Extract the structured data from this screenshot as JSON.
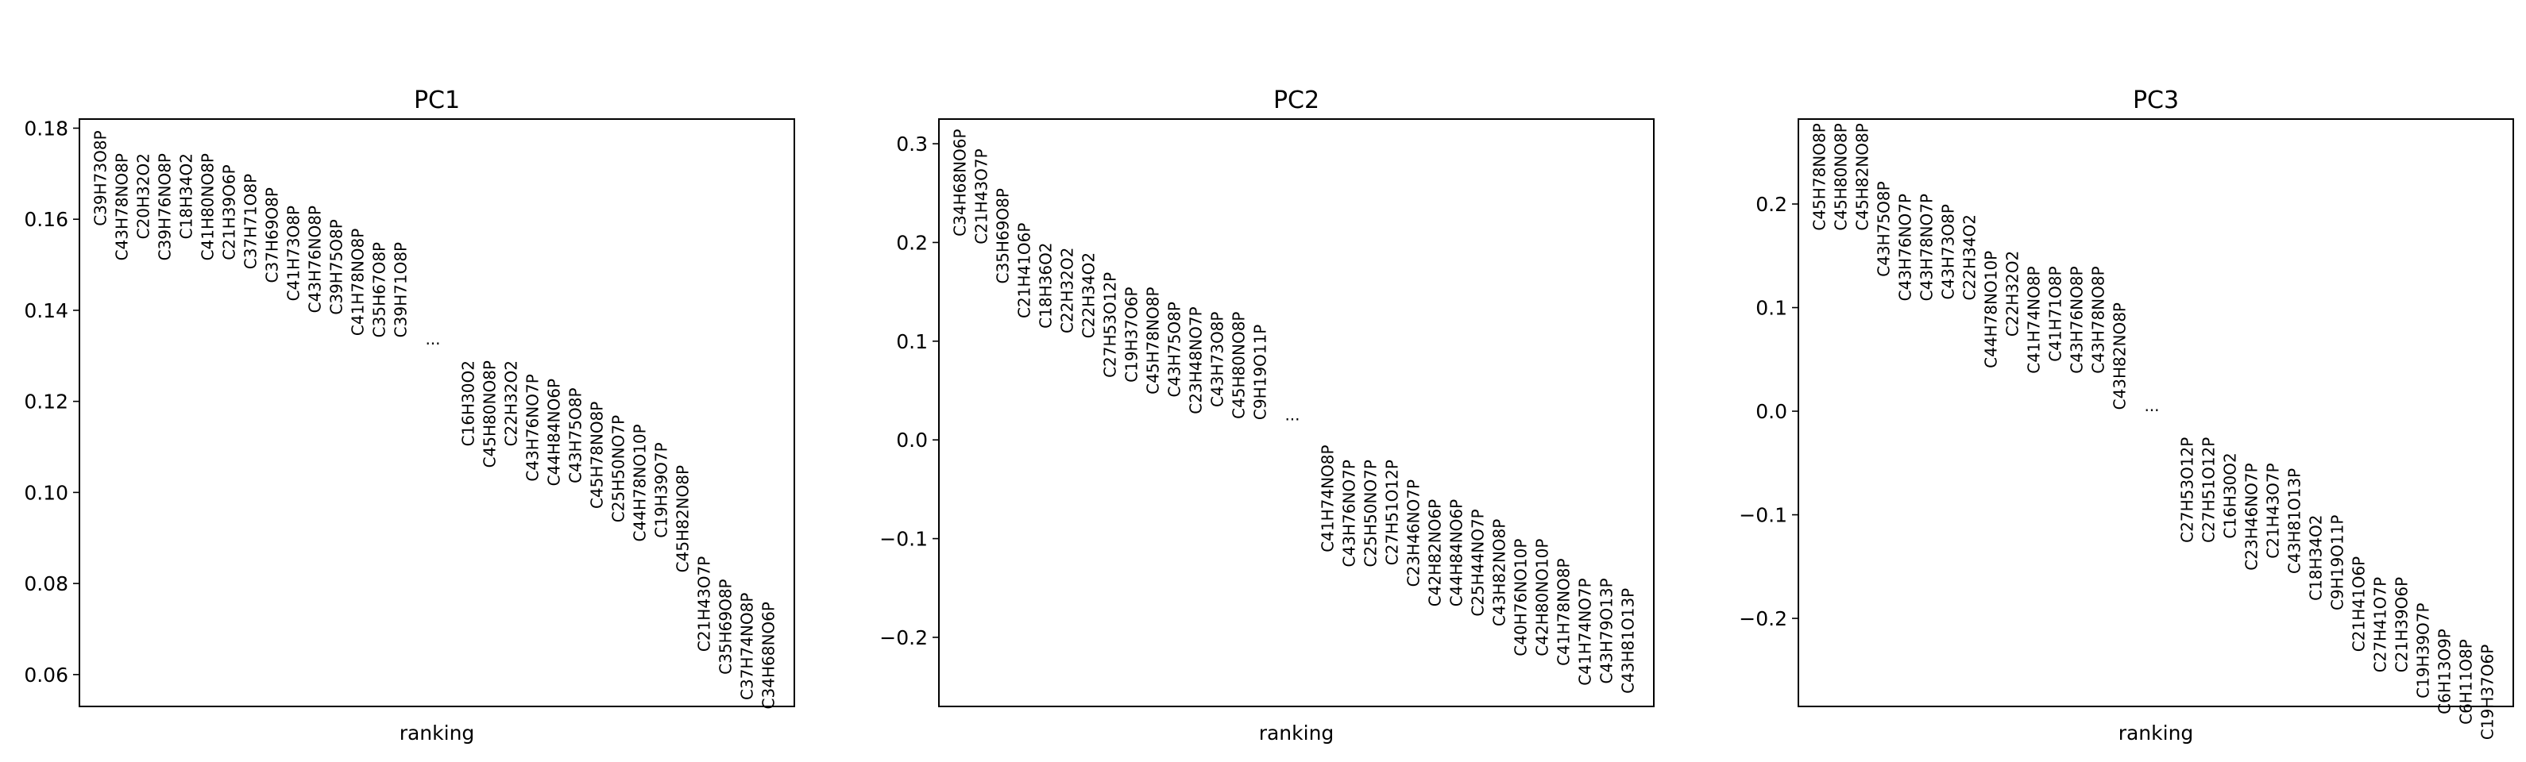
{
  "chart_data": [
    {
      "type": "scatter",
      "title": "PC1",
      "xlabel": "ranking",
      "ylabel": "",
      "ylim": [
        0.053,
        0.182
      ],
      "yticks": [
        0.06,
        0.08,
        0.1,
        0.12,
        0.14,
        0.16,
        0.18
      ],
      "ytick_labels": [
        "0.06",
        "0.08",
        "0.10",
        "0.12",
        "0.14",
        "0.16",
        "0.18"
      ],
      "ellipsis": "...",
      "ellipsis_value": 0.1325,
      "top_genes": [
        {
          "name": "C39H73O8P",
          "value": 0.1795
        },
        {
          "name": "C43H78NO8P",
          "value": 0.1745
        },
        {
          "name": "C20H32O2",
          "value": 0.1745
        },
        {
          "name": "C39H76NO8P",
          "value": 0.1745
        },
        {
          "name": "C18H34O2",
          "value": 0.1745
        },
        {
          "name": "C41H80NO8P",
          "value": 0.1745
        },
        {
          "name": "C21H39O6P",
          "value": 0.172
        },
        {
          "name": "C37H71O8P",
          "value": 0.17
        },
        {
          "name": "C37H69O8P",
          "value": 0.167
        },
        {
          "name": "C41H73O8P",
          "value": 0.163
        },
        {
          "name": "C43H76NO8P",
          "value": 0.163
        },
        {
          "name": "C39H75O8P",
          "value": 0.16
        },
        {
          "name": "C41H78NO8P",
          "value": 0.158
        },
        {
          "name": "C35H67O8P",
          "value": 0.155
        },
        {
          "name": "C39H71O8P",
          "value": 0.155
        }
      ],
      "bottom_genes": [
        {
          "name": "C16H30O2",
          "value": 0.129
        },
        {
          "name": "C45H80NO8P",
          "value": 0.129
        },
        {
          "name": "C22H32O2",
          "value": 0.129
        },
        {
          "name": "C43H76NO7P",
          "value": 0.126
        },
        {
          "name": "C44H84NO6P",
          "value": 0.125
        },
        {
          "name": "C43H75O8P",
          "value": 0.123
        },
        {
          "name": "C45H78NO8P",
          "value": 0.12
        },
        {
          "name": "C25H50NO7P",
          "value": 0.117
        },
        {
          "name": "C44H78NO10P",
          "value": 0.115
        },
        {
          "name": "C19H39O7P",
          "value": 0.111
        },
        {
          "name": "C45H82NO8P",
          "value": 0.106
        },
        {
          "name": "C21H43O7P",
          "value": 0.086
        },
        {
          "name": "C35H69O8P",
          "value": 0.081
        },
        {
          "name": "C37H74NO8P",
          "value": 0.078
        },
        {
          "name": "C34H68NO6P",
          "value": 0.076
        }
      ]
    },
    {
      "type": "scatter",
      "title": "PC2",
      "xlabel": "ranking",
      "ylabel": "",
      "ylim": [
        -0.27,
        0.325
      ],
      "yticks": [
        -0.2,
        -0.1,
        0.0,
        0.1,
        0.2,
        0.3
      ],
      "ytick_labels": [
        "−0.2",
        "−0.1",
        "0.0",
        "0.1",
        "0.2",
        "0.3"
      ],
      "ellipsis": "...",
      "ellipsis_value": 0.02,
      "top_genes": [
        {
          "name": "C34H68NO6P",
          "value": 0.315
        },
        {
          "name": "C21H43O7P",
          "value": 0.295
        },
        {
          "name": "C35H69O8P",
          "value": 0.255
        },
        {
          "name": "C21H41O6P",
          "value": 0.22
        },
        {
          "name": "C18H36O2",
          "value": 0.2
        },
        {
          "name": "C22H32O2",
          "value": 0.195
        },
        {
          "name": "C22H34O2",
          "value": 0.19
        },
        {
          "name": "C27H53O12P",
          "value": 0.17
        },
        {
          "name": "C19H37O6P",
          "value": 0.155
        },
        {
          "name": "C45H78NO8P",
          "value": 0.155
        },
        {
          "name": "C43H75O8P",
          "value": 0.14
        },
        {
          "name": "C23H48NO7P",
          "value": 0.135
        },
        {
          "name": "C43H73O8P",
          "value": 0.13
        },
        {
          "name": "C45H80NO8P",
          "value": 0.13
        },
        {
          "name": "C9H19O11P",
          "value": 0.117
        }
      ],
      "bottom_genes": [
        {
          "name": "C41H74NO8P",
          "value": -0.005
        },
        {
          "name": "C43H76NO7P",
          "value": -0.02
        },
        {
          "name": "C25H50NO7P",
          "value": -0.02
        },
        {
          "name": "C27H51O12P",
          "value": -0.02
        },
        {
          "name": "C23H46NO7P",
          "value": -0.04
        },
        {
          "name": "C42H82NO6P",
          "value": -0.06
        },
        {
          "name": "C44H84NO6P",
          "value": -0.06
        },
        {
          "name": "C25H44NO7P",
          "value": -0.07
        },
        {
          "name": "C43H82NO8P",
          "value": -0.08
        },
        {
          "name": "C40H76NO10P",
          "value": -0.1
        },
        {
          "name": "C42H80NO10P",
          "value": -0.1
        },
        {
          "name": "C41H78NO8P",
          "value": -0.12
        },
        {
          "name": "C41H74NO7P",
          "value": -0.14
        },
        {
          "name": "C43H79O13P",
          "value": -0.14
        },
        {
          "name": "C43H81O13P",
          "value": -0.15
        }
      ]
    },
    {
      "type": "scatter",
      "title": "PC3",
      "xlabel": "ranking",
      "ylabel": "",
      "ylim": [
        -0.285,
        0.282
      ],
      "yticks": [
        -0.2,
        -0.1,
        0.0,
        0.1,
        0.2
      ],
      "ytick_labels": [
        "−0.2",
        "−0.1",
        "0.0",
        "0.1",
        "0.2"
      ],
      "ellipsis": "...",
      "ellipsis_value": 0.0,
      "top_genes": [
        {
          "name": "C45H78NO8P",
          "value": 0.278
        },
        {
          "name": "C45H80NO8P",
          "value": 0.278
        },
        {
          "name": "C45H82NO8P",
          "value": 0.278
        },
        {
          "name": "C43H75O8P",
          "value": 0.222
        },
        {
          "name": "C43H76NO7P",
          "value": 0.21
        },
        {
          "name": "C43H78NO7P",
          "value": 0.21
        },
        {
          "name": "C43H73O8P",
          "value": 0.2
        },
        {
          "name": "C22H34O2",
          "value": 0.19
        },
        {
          "name": "C44H78NO10P",
          "value": 0.155
        },
        {
          "name": "C22H32O2",
          "value": 0.155
        },
        {
          "name": "C41H74NO8P",
          "value": 0.14
        },
        {
          "name": "C41H71O8P",
          "value": 0.14
        },
        {
          "name": "C43H76NO8P",
          "value": 0.14
        },
        {
          "name": "C43H78NO8P",
          "value": 0.14
        },
        {
          "name": "C43H82NO8P",
          "value": 0.105
        }
      ],
      "bottom_genes": [
        {
          "name": "C27H53O12P",
          "value": -0.025
        },
        {
          "name": "C27H51O12P",
          "value": -0.025
        },
        {
          "name": "C16H30O2",
          "value": -0.04
        },
        {
          "name": "C23H46NO7P",
          "value": -0.05
        },
        {
          "name": "C21H43O7P",
          "value": -0.05
        },
        {
          "name": "C43H81O13P",
          "value": -0.055
        },
        {
          "name": "C18H34O2",
          "value": -0.1
        },
        {
          "name": "C9H19O11P",
          "value": -0.1
        },
        {
          "name": "C21H41O6P",
          "value": -0.14
        },
        {
          "name": "C27H41O7P",
          "value": -0.16
        },
        {
          "name": "C21H39O6P",
          "value": -0.16
        },
        {
          "name": "C19H39O7P",
          "value": -0.185
        },
        {
          "name": "C6H13O9P",
          "value": -0.21
        },
        {
          "name": "C6H11O8P",
          "value": -0.22
        },
        {
          "name": "C19H37O6P",
          "value": -0.225
        }
      ]
    }
  ]
}
